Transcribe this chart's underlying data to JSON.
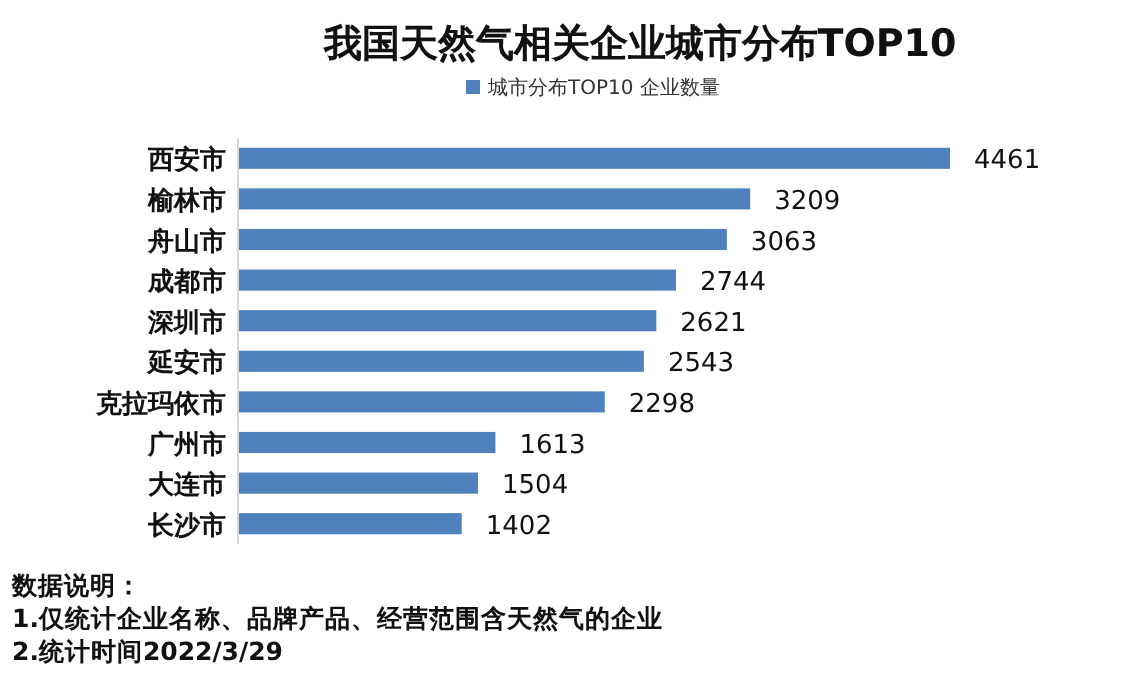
{
  "chart_data": {
    "type": "bar",
    "orientation": "horizontal",
    "title": "我国天然气相关企业城市分布TOP10",
    "categories": [
      "西安市",
      "榆林市",
      "舟山市",
      "成都市",
      "深圳市",
      "延安市",
      "克拉玛依市",
      "广州市",
      "大连市",
      "长沙市"
    ],
    "series": [
      {
        "name": "城市分布TOP10 企业数量",
        "color": "#4f81bd",
        "values": [
          4461,
          3209,
          3063,
          2744,
          2621,
          2543,
          2298,
          1613,
          1504,
          1402
        ]
      }
    ],
    "data_labels": true,
    "legend": "top",
    "annotations": [
      "数据说明：",
      "1.仅统计企业名称、品牌产品、经营范围含天然气的企业",
      "2.统计时间2022/3/29"
    ]
  }
}
